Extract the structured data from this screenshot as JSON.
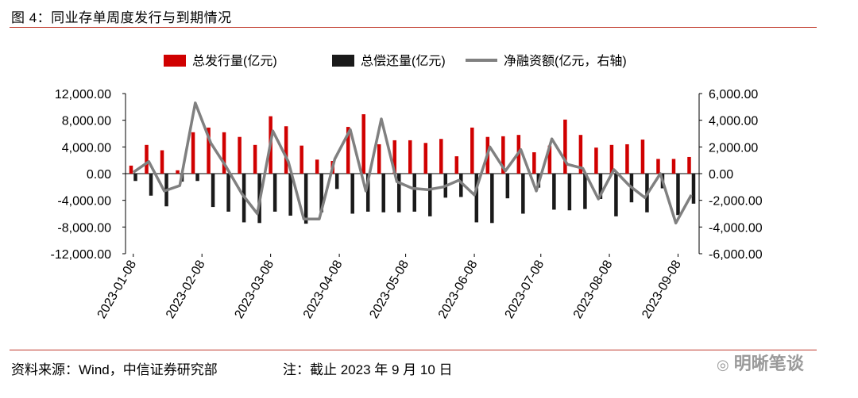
{
  "header": {
    "title": "图 4：同业存单周度发行与到期情况"
  },
  "footer": {
    "source": "资料来源：Wind，中信证券研究部",
    "note": "注：截止 2023 年 9 月 10 日",
    "watermark": "明晰笔谈"
  },
  "colors": {
    "issuance": "#d00000",
    "repayment": "#1a1a1a",
    "net": "#808080",
    "rule": "#c0392b"
  },
  "chart_data": {
    "type": "bar",
    "legend": [
      "总发行量(亿元)",
      "总偿还量(亿元)",
      "净融资额(亿元，右轴)"
    ],
    "legend_position": "top",
    "left_axis": {
      "ylim": [
        -12000,
        12000
      ],
      "ticks": [
        "12,000.00",
        "8,000.00",
        "4,000.00",
        "0.00",
        "-4,000.00",
        "-8,000.00",
        "-12,000.00"
      ]
    },
    "right_axis": {
      "ylim": [
        -6000,
        6000
      ],
      "ticks": [
        "6,000.00",
        "4,000.00",
        "2,000.00",
        "0.00",
        "-2,000.00",
        "-4,000.00",
        "-6,000.00"
      ]
    },
    "x_tick_labels": [
      "2023-01-08",
      "2023-02-08",
      "2023-03-08",
      "2023-04-08",
      "2023-05-08",
      "2023-06-08",
      "2023-07-08",
      "2023-08-08",
      "2023-09-08"
    ],
    "x_tick_weeks": [
      0,
      4.43,
      8.86,
      13.29,
      17.57,
      22.0,
      26.29,
      30.71,
      35.14
    ],
    "series": [
      {
        "name": "总发行量(亿元)",
        "axis": "left",
        "values": [
          1200,
          4300,
          3500,
          500,
          6200,
          6900,
          6200,
          5500,
          4300,
          8600,
          7100,
          4200,
          2100,
          1900,
          7000,
          8900,
          4400,
          5000,
          5000,
          4600,
          5200,
          2600,
          6900,
          5500,
          5600,
          5800,
          3200,
          4200,
          8100,
          5800,
          3900,
          4300,
          4400,
          5100,
          2200,
          2200,
          2500
        ]
      },
      {
        "name": "总偿还量(亿元)",
        "axis": "left",
        "values": [
          -1100,
          -3300,
          -4900,
          -1200,
          -1100,
          -5000,
          -5700,
          -7300,
          -7400,
          -5700,
          -6300,
          -7500,
          -5800,
          -2300,
          -6000,
          -5700,
          -5800,
          -5800,
          -5700,
          -6400,
          -3600,
          -3500,
          -7300,
          -7400,
          -3700,
          -6000,
          -2100,
          -5400,
          -5500,
          -5300,
          -3800,
          -6400,
          -4300,
          -5800,
          -2200,
          -6200,
          -4500
        ]
      },
      {
        "name": "净融资额(亿元，右轴)",
        "axis": "right",
        "values": [
          100,
          900,
          -1300,
          -900,
          5300,
          2300,
          500,
          -1500,
          -3000,
          3200,
          900,
          -3400,
          -3400,
          1100,
          3300,
          -1300,
          4100,
          -600,
          -1100,
          -1200,
          -1000,
          -500,
          -1600,
          2000,
          200,
          1800,
          -1300,
          2600,
          700,
          400,
          -1900,
          300,
          -900,
          -1800,
          0,
          -3700,
          -1600
        ]
      }
    ]
  }
}
